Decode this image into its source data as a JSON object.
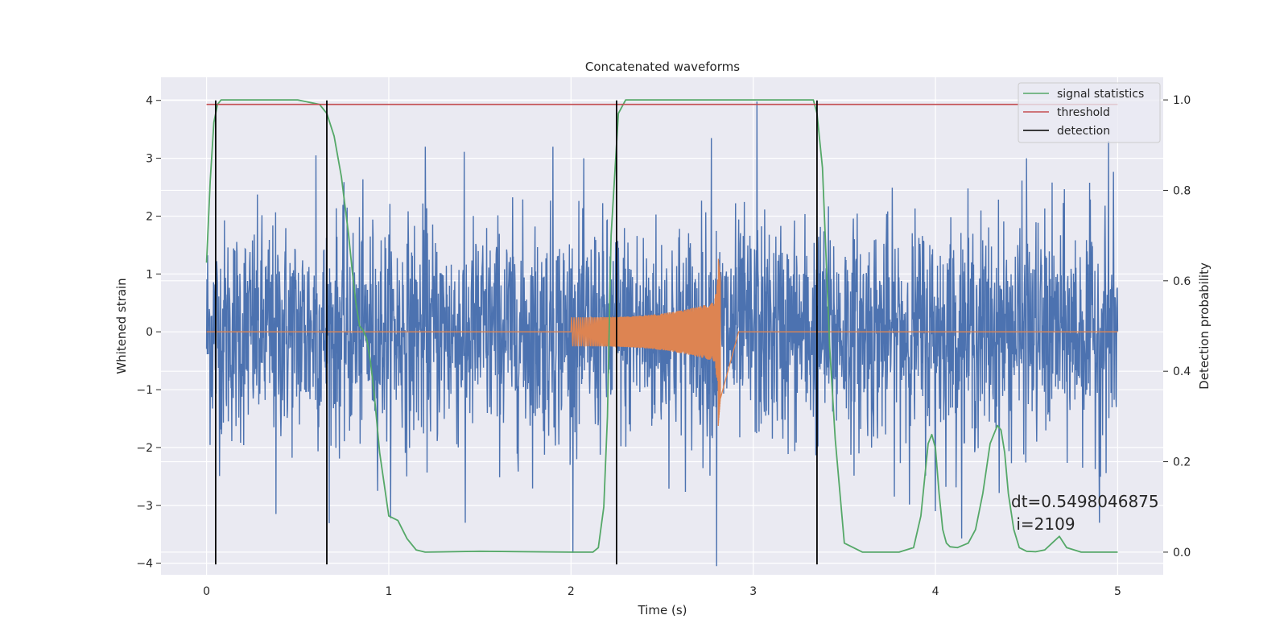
{
  "chart_data": {
    "type": "line",
    "title": "Concatenated waveforms",
    "xlabel": "Time (s)",
    "ylabel": "Whitened strain",
    "y2label": "Detection probability",
    "xlim": [
      -0.25,
      5.25
    ],
    "ylim": [
      -4.2,
      4.4
    ],
    "y2lim": [
      -0.05,
      1.05
    ],
    "grid": true,
    "legend_position": "upper right",
    "x_ticks": [
      0,
      1,
      2,
      3,
      4,
      5
    ],
    "x_tick_labels": [
      "0",
      "1",
      "2",
      "3",
      "4",
      "5"
    ],
    "y_ticks": [
      -4,
      -3,
      -2,
      -1,
      0,
      1,
      2,
      3,
      4
    ],
    "y_tick_labels": [
      "−4",
      "−3",
      "−2",
      "−1",
      "0",
      "1",
      "2",
      "3",
      "4"
    ],
    "y2_ticks": [
      0.0,
      0.2,
      0.4,
      0.6,
      0.8,
      1.0
    ],
    "y2_tick_labels": [
      "0.0",
      "0.2",
      "0.4",
      "0.6",
      "0.8",
      "1.0"
    ],
    "colors": {
      "strain": "#4c72b0",
      "waveform": "#dd8452",
      "signal_statistics": "#55a868",
      "threshold": "#c44e52",
      "detection": "#000000",
      "plot_bg": "#eaeaf2",
      "grid": "#ffffff"
    },
    "series": [
      {
        "name": "signal statistics",
        "axis": "right",
        "x": [
          0,
          0.02,
          0.04,
          0.06,
          0.08,
          0.1,
          0.15,
          0.3,
          0.5,
          0.62,
          0.66,
          0.7,
          0.74,
          0.78,
          0.8,
          0.82,
          0.84,
          0.86,
          0.88,
          0.9,
          0.92,
          0.95,
          1.0,
          1.05,
          1.1,
          1.15,
          1.2,
          1.5,
          2.0,
          2.12,
          2.15,
          2.18,
          2.2,
          2.22,
          2.26,
          2.3,
          2.5,
          3.0,
          3.33,
          3.35,
          3.38,
          3.4,
          3.42,
          3.45,
          3.5,
          3.6,
          3.8,
          3.88,
          3.92,
          3.96,
          3.98,
          4.0,
          4.02,
          4.04,
          4.06,
          4.08,
          4.12,
          4.18,
          4.22,
          4.26,
          4.3,
          4.34,
          4.36,
          4.38,
          4.4,
          4.43,
          4.46,
          4.5,
          4.55,
          4.6,
          4.64,
          4.68,
          4.72,
          4.8,
          5.0
        ],
        "y": [
          0.64,
          0.82,
          0.95,
          0.99,
          1.0,
          1.0,
          1.0,
          1.0,
          1.0,
          0.99,
          0.97,
          0.92,
          0.83,
          0.7,
          0.62,
          0.55,
          0.5,
          0.49,
          0.47,
          0.42,
          0.35,
          0.22,
          0.08,
          0.07,
          0.03,
          0.005,
          0.0,
          0.002,
          0.0,
          0.0,
          0.01,
          0.1,
          0.3,
          0.7,
          0.97,
          1.0,
          1.0,
          1.0,
          1.0,
          0.97,
          0.85,
          0.65,
          0.45,
          0.25,
          0.02,
          0.0,
          0.0,
          0.01,
          0.08,
          0.24,
          0.26,
          0.23,
          0.13,
          0.05,
          0.02,
          0.012,
          0.01,
          0.02,
          0.05,
          0.13,
          0.24,
          0.28,
          0.27,
          0.22,
          0.13,
          0.05,
          0.01,
          0.002,
          0.001,
          0.005,
          0.02,
          0.035,
          0.01,
          0.0,
          0.0
        ]
      },
      {
        "name": "threshold",
        "axis": "right",
        "x": [
          0,
          5
        ],
        "y": [
          0.99,
          0.99
        ]
      },
      {
        "name": "detection",
        "axis": "left",
        "x": [
          0.05,
          0.66,
          2.25,
          3.35
        ],
        "y_range": [
          -4.02,
          4.0
        ]
      },
      {
        "name": "",
        "axis": "left",
        "description_type": "strain",
        "x_range": [
          0,
          5
        ],
        "amplitude_envelope": 1.0,
        "peaks": [
          {
            "x": 0.6,
            "y": 3.05
          },
          {
            "x": 1.2,
            "y": 3.2
          },
          {
            "x": 1.9,
            "y": 3.2
          },
          {
            "x": 2.77,
            "y": 3.35
          },
          {
            "x": 3.02,
            "y": 3.98
          },
          {
            "x": 4.5,
            "y": 3.0
          },
          {
            "x": 4.95,
            "y": 3.3
          },
          {
            "x": 2.8,
            "y": -4.05
          },
          {
            "x": 1.42,
            "y": -3.3
          },
          {
            "x": 0.38,
            "y": -3.15
          },
          {
            "x": 4.0,
            "y": -3.1
          },
          {
            "x": 4.9,
            "y": -3.3
          }
        ]
      },
      {
        "name": "",
        "axis": "left",
        "description_type": "chirp",
        "x_range": [
          2.0,
          2.82
        ],
        "amplitude_start": 0.25,
        "amplitude_peak": 1.3,
        "amplitude_min": -1.65
      }
    ],
    "annotation": {
      "line1": "dt=0.5498046875",
      "line2": " i=2109"
    }
  }
}
